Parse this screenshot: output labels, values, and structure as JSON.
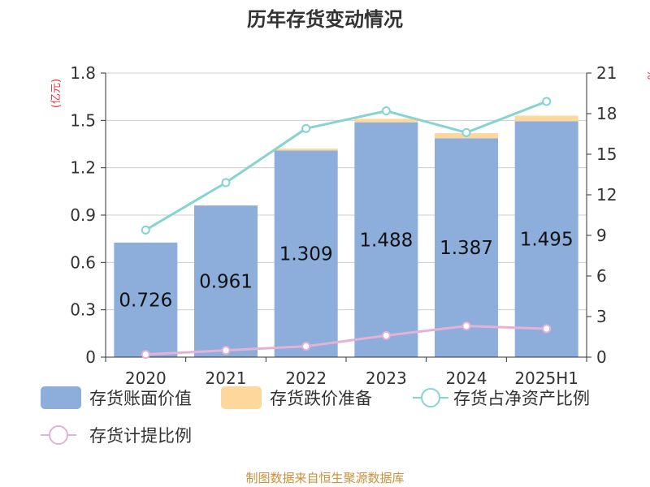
{
  "chart_data": {
    "title": "历年存货变动情况",
    "type": "bar",
    "categories": [
      "2020",
      "2021",
      "2022",
      "2023",
      "2024",
      "2025H1"
    ],
    "left_axis": {
      "unit": "(亿元)",
      "ticks": [
        "0",
        "0.3",
        "0.6",
        "0.9",
        "1.2",
        "1.5",
        "1.8"
      ],
      "ylim": [
        0,
        1.8
      ]
    },
    "right_axis": {
      "unit": "%",
      "ticks": [
        "0",
        "3",
        "6",
        "9",
        "12",
        "15",
        "18",
        "21"
      ],
      "ylim": [
        0,
        21
      ]
    },
    "series": [
      {
        "name": "存货账面价值",
        "type": "bar",
        "axis": "left",
        "stack": "total",
        "color": "#8daedb",
        "values": [
          0.726,
          0.961,
          1.309,
          1.488,
          1.387,
          1.495
        ],
        "labels": [
          "0.726",
          "0.961",
          "1.309",
          "1.488",
          "1.387",
          "1.495"
        ]
      },
      {
        "name": "存货跌价准备",
        "type": "bar",
        "axis": "left",
        "stack": "total",
        "color": "#fdd79b",
        "values": [
          0.0,
          0.002,
          0.012,
          0.022,
          0.032,
          0.035
        ]
      },
      {
        "name": "存货占净资产比例",
        "type": "line",
        "axis": "right",
        "color": "#86d3d4",
        "values": [
          9.4,
          12.9,
          16.9,
          18.2,
          16.6,
          18.9
        ]
      },
      {
        "name": "存货计提比例",
        "type": "line",
        "axis": "right",
        "color": "#e3b2d6",
        "values": [
          0.2,
          0.5,
          0.8,
          1.6,
          2.3,
          2.1
        ]
      }
    ],
    "legend_position": "bottom",
    "grid": true
  },
  "footer": {
    "source": "制图数据来自恒生聚源数据库"
  }
}
